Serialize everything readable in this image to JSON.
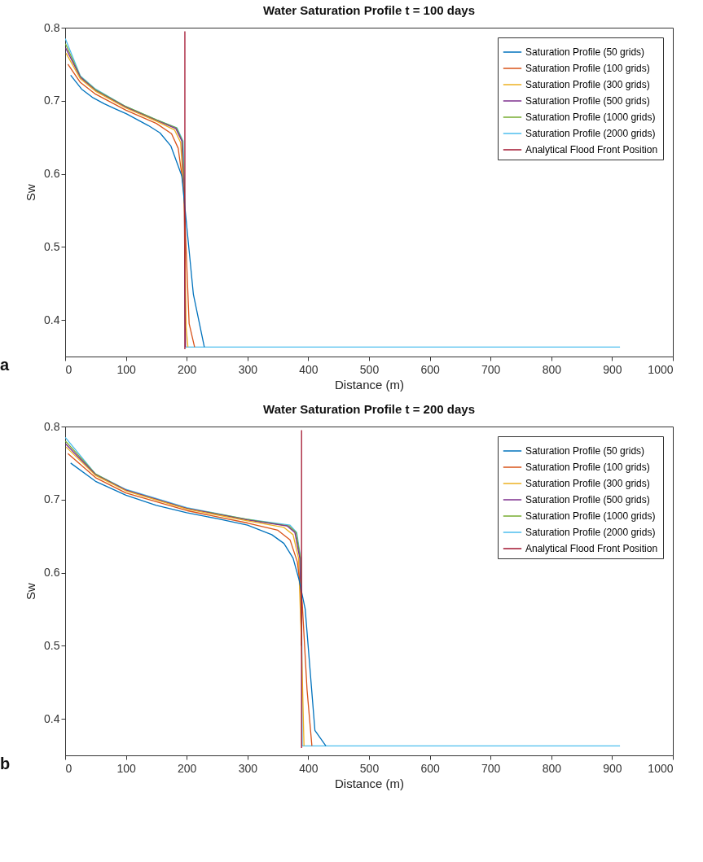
{
  "chart_data": [
    {
      "type": "line",
      "title": "Water Saturation Profile  t = 100 days",
      "xlabel": "Distance (m)",
      "ylabel": "Sw",
      "annotations": [
        "a"
      ],
      "xlim": [
        0,
        1000
      ],
      "xticks": [
        0,
        100,
        200,
        300,
        400,
        500,
        600,
        700,
        800,
        900,
        1000
      ],
      "ylim": [
        0.35,
        0.8
      ],
      "yticks": [
        0.4,
        0.5,
        0.6,
        0.7,
        0.8
      ],
      "grid": false,
      "legend": "top right",
      "series": [
        {
          "name": "Saturation Profile (50 grids)",
          "color": "#0072bd",
          "x": [
            9,
            27,
            46,
            64,
            82,
            101,
            119,
            137,
            156,
            174,
            192,
            211,
            229
          ],
          "values": [
            0.735,
            0.716,
            0.704,
            0.696,
            0.689,
            0.682,
            0.674,
            0.666,
            0.656,
            0.638,
            0.597,
            0.435,
            0.363
          ]
        },
        {
          "name": "Saturation Profile (100 grids)",
          "color": "#d95319",
          "x": [
            4.5,
            25,
            50,
            100,
            150,
            175,
            186,
            195,
            204,
            213
          ],
          "values": [
            0.75,
            0.725,
            0.709,
            0.687,
            0.669,
            0.655,
            0.635,
            0.58,
            0.395,
            0.363
          ]
        },
        {
          "name": "Saturation Profile (300 grids)",
          "color": "#edb120",
          "x": [
            1.5,
            25,
            50,
            100,
            150,
            180,
            190,
            196,
            199,
            202
          ],
          "values": [
            0.765,
            0.73,
            0.713,
            0.69,
            0.672,
            0.66,
            0.643,
            0.56,
            0.39,
            0.363
          ]
        },
        {
          "name": "Saturation Profile (500 grids)",
          "color": "#7e2f8e",
          "x": [
            1,
            25,
            50,
            100,
            150,
            182,
            192,
            196,
            198
          ],
          "values": [
            0.772,
            0.732,
            0.714,
            0.691,
            0.673,
            0.662,
            0.645,
            0.56,
            0.363
          ]
        },
        {
          "name": "Saturation Profile (1000 grids)",
          "color": "#77ac30",
          "x": [
            0.5,
            25,
            50,
            100,
            150,
            183,
            193,
            196.5
          ],
          "values": [
            0.778,
            0.733,
            0.715,
            0.692,
            0.674,
            0.663,
            0.645,
            0.56
          ]
        },
        {
          "name": "Saturation Profile (2000 grids)",
          "color": "#4dbeee",
          "x": [
            0.25,
            25,
            50,
            100,
            150,
            184,
            194,
            197,
            197.5,
            913
          ],
          "values": [
            0.785,
            0.734,
            0.716,
            0.692,
            0.674,
            0.663,
            0.645,
            0.56,
            0.363,
            0.363
          ]
        },
        {
          "name": "Analytical Flood Front Position",
          "color": "#a2142f",
          "x": [
            197,
            197
          ],
          "values": [
            0.36,
            0.795
          ]
        }
      ]
    },
    {
      "type": "line",
      "title": "Water Saturation Profile  t = 200 days",
      "xlabel": "Distance (m)",
      "ylabel": "Sw",
      "annotations": [
        "b"
      ],
      "xlim": [
        0,
        1000
      ],
      "xticks": [
        0,
        100,
        200,
        300,
        400,
        500,
        600,
        700,
        800,
        900,
        1000
      ],
      "ylim": [
        0.35,
        0.8
      ],
      "yticks": [
        0.4,
        0.5,
        0.6,
        0.7,
        0.8
      ],
      "grid": false,
      "legend": "top right",
      "series": [
        {
          "name": "Saturation Profile (50 grids)",
          "color": "#0072bd",
          "x": [
            9,
            50,
            100,
            150,
            200,
            250,
            300,
            340,
            360,
            375,
            385,
            395,
            411,
            429
          ],
          "values": [
            0.75,
            0.725,
            0.706,
            0.692,
            0.682,
            0.674,
            0.665,
            0.652,
            0.64,
            0.62,
            0.59,
            0.55,
            0.384,
            0.363
          ]
        },
        {
          "name": "Saturation Profile (100 grids)",
          "color": "#d95319",
          "x": [
            4.5,
            50,
            100,
            200,
            300,
            350,
            370,
            382,
            390,
            398,
            406
          ],
          "values": [
            0.763,
            0.73,
            0.709,
            0.685,
            0.668,
            0.658,
            0.645,
            0.615,
            0.56,
            0.44,
            0.363
          ]
        },
        {
          "name": "Saturation Profile (300 grids)",
          "color": "#edb120",
          "x": [
            1.5,
            50,
            100,
            200,
            300,
            360,
            375,
            384,
            389,
            393
          ],
          "values": [
            0.772,
            0.733,
            0.712,
            0.687,
            0.671,
            0.662,
            0.652,
            0.62,
            0.5,
            0.363
          ]
        },
        {
          "name": "Saturation Profile (500 grids)",
          "color": "#7e2f8e",
          "x": [
            1,
            50,
            100,
            200,
            300,
            365,
            378,
            386,
            389
          ],
          "values": [
            0.776,
            0.734,
            0.713,
            0.688,
            0.672,
            0.664,
            0.655,
            0.62,
            0.5
          ]
        },
        {
          "name": "Saturation Profile (1000 grids)",
          "color": "#77ac30",
          "x": [
            0.5,
            50,
            100,
            200,
            300,
            368,
            380,
            387,
            389
          ],
          "values": [
            0.78,
            0.735,
            0.713,
            0.688,
            0.673,
            0.664,
            0.655,
            0.62,
            0.5
          ]
        },
        {
          "name": "Saturation Profile (2000 grids)",
          "color": "#4dbeee",
          "x": [
            0.25,
            50,
            100,
            200,
            300,
            370,
            381,
            387.5,
            389.5,
            390,
            913
          ],
          "values": [
            0.785,
            0.735,
            0.714,
            0.689,
            0.673,
            0.665,
            0.655,
            0.62,
            0.5,
            0.363,
            0.363
          ]
        },
        {
          "name": "Analytical Flood Front Position",
          "color": "#a2142f",
          "x": [
            389,
            389
          ],
          "values": [
            0.36,
            0.795
          ]
        }
      ]
    }
  ]
}
